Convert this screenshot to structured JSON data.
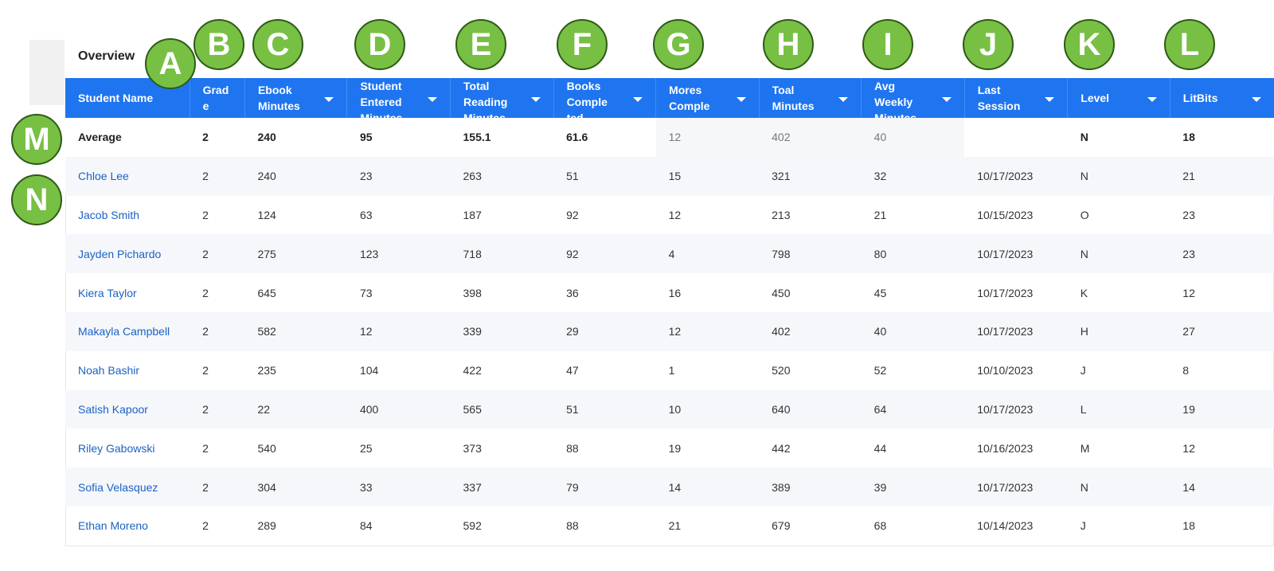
{
  "overview": {
    "title": "Overview"
  },
  "columns": [
    {
      "label": "Student Name",
      "sortable": false
    },
    {
      "label": "Grad e",
      "sortable": false
    },
    {
      "label": "Ebook Minutes",
      "sortable": true
    },
    {
      "label": "Student Entered Minutes",
      "sortable": true
    },
    {
      "label": "Total Reading Minutes",
      "sortable": true
    },
    {
      "label": "Books Comple ted",
      "sortable": true
    },
    {
      "label": "Mores Comple",
      "sortable": true
    },
    {
      "label": "Toal Minutes",
      "sortable": true
    },
    {
      "label": "Avg Weekly Minutes",
      "sortable": true
    },
    {
      "label": "Last Session",
      "sortable": true
    },
    {
      "label": "Level",
      "sortable": true
    },
    {
      "label": "LitBits",
      "sortable": true
    }
  ],
  "average": [
    "Average",
    "2",
    "240",
    "95",
    "155.1",
    "61.6",
    "12",
    "402",
    "40",
    "",
    "N",
    "18"
  ],
  "rows": [
    [
      "Chloe Lee",
      "2",
      "240",
      "23",
      "263",
      "51",
      "15",
      "321",
      "32",
      "10/17/2023",
      "N",
      "21"
    ],
    [
      "Jacob Smith",
      "2",
      "124",
      "63",
      "187",
      "92",
      "12",
      "213",
      "21",
      "10/15/2023",
      "O",
      "23"
    ],
    [
      "Jayden Pichardo",
      "2",
      "275",
      "123",
      "718",
      "92",
      "4",
      "798",
      "80",
      "10/17/2023",
      "N",
      "23"
    ],
    [
      "Kiera Taylor",
      "2",
      "645",
      "73",
      "398",
      "36",
      "16",
      "450",
      "45",
      "10/17/2023",
      "K",
      "12"
    ],
    [
      "Makayla Campbell",
      "2",
      "582",
      "12",
      "339",
      "29",
      "12",
      "402",
      "40",
      "10/17/2023",
      "H",
      "27"
    ],
    [
      "Noah Bashir",
      "2",
      "235",
      "104",
      "422",
      "47",
      "1",
      "520",
      "52",
      "10/10/2023",
      "J",
      "8"
    ],
    [
      "Satish Kapoor",
      "2",
      "22",
      "400",
      "565",
      "51",
      "10",
      "640",
      "64",
      "10/17/2023",
      "L",
      "19"
    ],
    [
      "Riley Gabowski",
      "2",
      "540",
      "25",
      "373",
      "88",
      "19",
      "442",
      "44",
      "10/16/2023",
      "M",
      "12"
    ],
    [
      "Sofia Velasquez",
      "2",
      "304",
      "33",
      "337",
      "79",
      "14",
      "389",
      "39",
      "10/17/2023",
      "N",
      "14"
    ],
    [
      "Ethan Moreno",
      "2",
      "289",
      "84",
      "592",
      "88",
      "21",
      "679",
      "68",
      "10/14/2023",
      "J",
      "18"
    ]
  ],
  "annotations": [
    "A",
    "B",
    "C",
    "D",
    "E",
    "F",
    "G",
    "H",
    "I",
    "J",
    "K",
    "L",
    "M",
    "N"
  ],
  "colors": {
    "header": "#1f75f0",
    "link": "#1c62c4",
    "badge": "#77c043",
    "badge_border": "#2f5a19"
  }
}
